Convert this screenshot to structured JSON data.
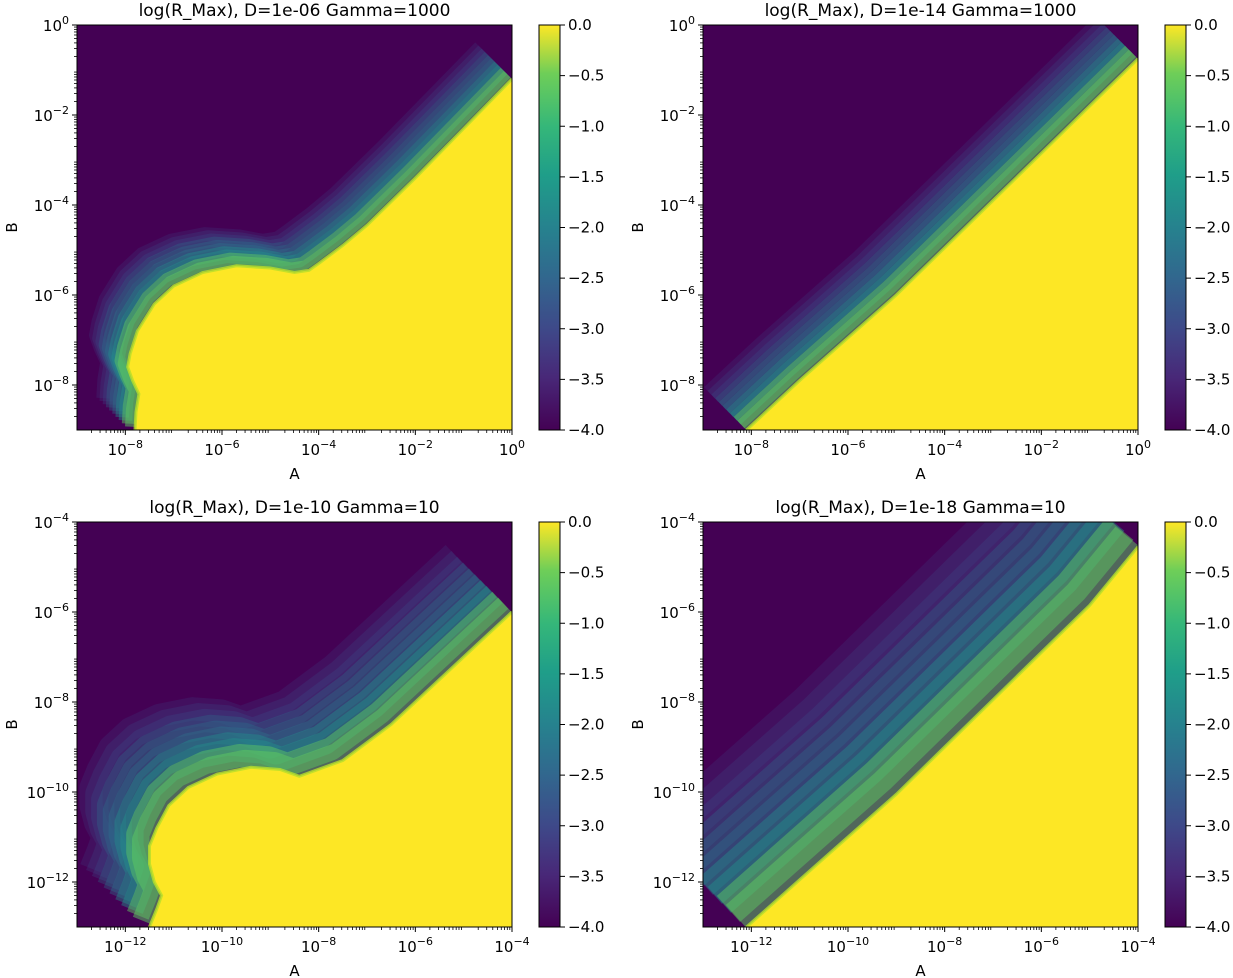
{
  "figure": {
    "colormap": "viridis",
    "colors": {
      "low": "#440154",
      "mid": "#21918c",
      "high": "#fde725"
    }
  },
  "chart_data": [
    {
      "type": "heatmap",
      "title": "log(R_Max), D=1e-06 Gamma=1000",
      "xlabel": "A",
      "ylabel": "B",
      "x_scale": "log",
      "y_scale": "log",
      "x_exp_range": [
        -9,
        0
      ],
      "y_exp_range": [
        -9,
        0
      ],
      "x_ticks": [
        {
          "exp": -8,
          "base": "10",
          "power": "−8"
        },
        {
          "exp": -6,
          "base": "10",
          "power": "−6"
        },
        {
          "exp": -4,
          "base": "10",
          "power": "−4"
        },
        {
          "exp": -2,
          "base": "10",
          "power": "−2"
        },
        {
          "exp": 0,
          "base": "10",
          "power": "0"
        }
      ],
      "y_ticks": [
        {
          "exp": -8,
          "base": "10",
          "power": "−8"
        },
        {
          "exp": -6,
          "base": "10",
          "power": "−6"
        },
        {
          "exp": -4,
          "base": "10",
          "power": "−4"
        },
        {
          "exp": -2,
          "base": "10",
          "power": "−2"
        },
        {
          "exp": 0,
          "base": "10",
          "power": "0"
        }
      ],
      "colorbar": {
        "range": [
          -4.0,
          0.0
        ],
        "ticks": [
          {
            "value": 0.0,
            "label": "0.0"
          },
          {
            "value": -0.5,
            "label": "−0.5"
          },
          {
            "value": -1.0,
            "label": "−1.0"
          },
          {
            "value": -1.5,
            "label": "−1.5"
          },
          {
            "value": -2.0,
            "label": "−2.0"
          },
          {
            "value": -2.5,
            "label": "−2.5"
          },
          {
            "value": -3.0,
            "label": "−3.0"
          },
          {
            "value": -3.5,
            "label": "−3.5"
          },
          {
            "value": -4.0,
            "label": "−4.0"
          }
        ]
      },
      "boundary": [
        [
          -7.8,
          -9
        ],
        [
          -7.78,
          -8.6
        ],
        [
          -7.72,
          -8.2
        ],
        [
          -7.85,
          -7.9
        ],
        [
          -7.95,
          -7.6
        ],
        [
          -7.9,
          -7.3
        ],
        [
          -7.75,
          -6.8
        ],
        [
          -7.4,
          -6.2
        ],
        [
          -7.0,
          -5.8
        ],
        [
          -6.4,
          -5.5
        ],
        [
          -5.7,
          -5.35
        ],
        [
          -5.0,
          -5.4
        ],
        [
          -4.5,
          -5.5
        ],
        [
          -4.2,
          -5.45
        ],
        [
          -4.0,
          -5.3
        ],
        [
          -3.5,
          -4.9
        ],
        [
          -3.0,
          -4.45
        ],
        [
          -2.0,
          -3.4
        ],
        [
          -1.0,
          -2.3
        ],
        [
          0,
          -1.2
        ]
      ],
      "band": {
        "decades": 1.2
      }
    },
    {
      "type": "heatmap",
      "title": "log(R_Max), D=1e-14 Gamma=1000",
      "xlabel": "A",
      "ylabel": "B",
      "x_scale": "log",
      "y_scale": "log",
      "x_exp_range": [
        -9,
        0
      ],
      "y_exp_range": [
        -9,
        0
      ],
      "x_ticks": [
        {
          "exp": -8,
          "base": "10",
          "power": "−8"
        },
        {
          "exp": -6,
          "base": "10",
          "power": "−6"
        },
        {
          "exp": -4,
          "base": "10",
          "power": "−4"
        },
        {
          "exp": -2,
          "base": "10",
          "power": "−2"
        },
        {
          "exp": 0,
          "base": "10",
          "power": "0"
        }
      ],
      "y_ticks": [
        {
          "exp": -8,
          "base": "10",
          "power": "−8"
        },
        {
          "exp": -6,
          "base": "10",
          "power": "−6"
        },
        {
          "exp": -4,
          "base": "10",
          "power": "−4"
        },
        {
          "exp": -2,
          "base": "10",
          "power": "−2"
        },
        {
          "exp": 0,
          "base": "10",
          "power": "0"
        }
      ],
      "colorbar": {
        "range": [
          -4.0,
          0.0
        ],
        "ticks": [
          {
            "value": 0.0,
            "label": "0.0"
          },
          {
            "value": -0.5,
            "label": "−0.5"
          },
          {
            "value": -1.0,
            "label": "−1.0"
          },
          {
            "value": -1.5,
            "label": "−1.5"
          },
          {
            "value": -2.0,
            "label": "−2.0"
          },
          {
            "value": -2.5,
            "label": "−2.5"
          },
          {
            "value": -3.0,
            "label": "−3.0"
          },
          {
            "value": -3.5,
            "label": "−3.5"
          },
          {
            "value": -4.0,
            "label": "−4.0"
          }
        ]
      },
      "boundary": [
        [
          -8.1,
          -9
        ],
        [
          -7.0,
          -7.9
        ],
        [
          -6.0,
          -6.95
        ],
        [
          -5.0,
          -6.0
        ],
        [
          -4.0,
          -4.95
        ],
        [
          -3.0,
          -3.9
        ],
        [
          -2.0,
          -2.85
        ],
        [
          -1.0,
          -1.8
        ],
        [
          0,
          -0.75
        ]
      ],
      "band": {
        "decades": 1.4
      }
    },
    {
      "type": "heatmap",
      "title": "log(R_Max), D=1e-10 Gamma=10",
      "xlabel": "A",
      "ylabel": "B",
      "x_scale": "log",
      "y_scale": "log",
      "x_exp_range": [
        -13,
        -4
      ],
      "y_exp_range": [
        -13,
        -4
      ],
      "x_ticks": [
        {
          "exp": -12,
          "base": "10",
          "power": "−12"
        },
        {
          "exp": -10,
          "base": "10",
          "power": "−10"
        },
        {
          "exp": -8,
          "base": "10",
          "power": "−8"
        },
        {
          "exp": -6,
          "base": "10",
          "power": "−6"
        },
        {
          "exp": -4,
          "base": "10",
          "power": "−4"
        }
      ],
      "y_ticks": [
        {
          "exp": -12,
          "base": "10",
          "power": "−12"
        },
        {
          "exp": -10,
          "base": "10",
          "power": "−10"
        },
        {
          "exp": -8,
          "base": "10",
          "power": "−8"
        },
        {
          "exp": -6,
          "base": "10",
          "power": "−6"
        },
        {
          "exp": -4,
          "base": "10",
          "power": "−4"
        }
      ],
      "colorbar": {
        "range": [
          -4.0,
          0.0
        ],
        "ticks": [
          {
            "value": 0.0,
            "label": "0.0"
          },
          {
            "value": -0.5,
            "label": "−0.5"
          },
          {
            "value": -1.0,
            "label": "−1.0"
          },
          {
            "value": -1.5,
            "label": "−1.5"
          },
          {
            "value": -2.0,
            "label": "−2.0"
          },
          {
            "value": -2.5,
            "label": "−2.5"
          },
          {
            "value": -3.0,
            "label": "−3.0"
          },
          {
            "value": -3.5,
            "label": "−3.5"
          },
          {
            "value": -4.0,
            "label": "−4.0"
          }
        ]
      },
      "boundary": [
        [
          -11.5,
          -13
        ],
        [
          -11.35,
          -12.6
        ],
        [
          -11.25,
          -12.3
        ],
        [
          -11.4,
          -12.0
        ],
        [
          -11.5,
          -11.6
        ],
        [
          -11.5,
          -11.2
        ],
        [
          -11.35,
          -10.8
        ],
        [
          -11.1,
          -10.3
        ],
        [
          -10.7,
          -9.9
        ],
        [
          -10.1,
          -9.6
        ],
        [
          -9.4,
          -9.45
        ],
        [
          -8.8,
          -9.5
        ],
        [
          -8.4,
          -9.65
        ],
        [
          -7.5,
          -9.3
        ],
        [
          -6.5,
          -8.5
        ],
        [
          -5.5,
          -7.5
        ],
        [
          -4.8,
          -6.8
        ],
        [
          -4,
          -6.0
        ]
      ],
      "band": {
        "decades": 2.2
      }
    },
    {
      "type": "heatmap",
      "title": "log(R_Max), D=1e-18 Gamma=10",
      "xlabel": "A",
      "ylabel": "B",
      "x_scale": "log",
      "y_scale": "log",
      "x_exp_range": [
        -13,
        -4
      ],
      "y_exp_range": [
        -13,
        -4
      ],
      "x_ticks": [
        {
          "exp": -12,
          "base": "10",
          "power": "−12"
        },
        {
          "exp": -10,
          "base": "10",
          "power": "−10"
        },
        {
          "exp": -8,
          "base": "10",
          "power": "−8"
        },
        {
          "exp": -6,
          "base": "10",
          "power": "−6"
        },
        {
          "exp": -4,
          "base": "10",
          "power": "−4"
        }
      ],
      "y_ticks": [
        {
          "exp": -12,
          "base": "10",
          "power": "−12"
        },
        {
          "exp": -10,
          "base": "10",
          "power": "−10"
        },
        {
          "exp": -8,
          "base": "10",
          "power": "−8"
        },
        {
          "exp": -6,
          "base": "10",
          "power": "−6"
        },
        {
          "exp": -4,
          "base": "10",
          "power": "−4"
        }
      ],
      "colorbar": {
        "range": [
          -4.0,
          0.0
        ],
        "ticks": [
          {
            "value": 0.0,
            "label": "0.0"
          },
          {
            "value": -0.5,
            "label": "−0.5"
          },
          {
            "value": -1.0,
            "label": "−1.0"
          },
          {
            "value": -1.5,
            "label": "−1.5"
          },
          {
            "value": -2.0,
            "label": "−2.0"
          },
          {
            "value": -2.5,
            "label": "−2.5"
          },
          {
            "value": -3.0,
            "label": "−3.0"
          },
          {
            "value": -3.5,
            "label": "−3.5"
          },
          {
            "value": -4.0,
            "label": "−4.0"
          }
        ]
      },
      "boundary": [
        [
          -12.1,
          -13
        ],
        [
          -11.0,
          -11.95
        ],
        [
          -10.0,
          -11.0
        ],
        [
          -9.0,
          -10.05
        ],
        [
          -8.0,
          -9.0
        ],
        [
          -7.0,
          -7.95
        ],
        [
          -6.0,
          -6.9
        ],
        [
          -5.0,
          -5.85
        ],
        [
          -4,
          -4.55
        ]
      ],
      "band": {
        "decades": 3.4
      }
    }
  ]
}
